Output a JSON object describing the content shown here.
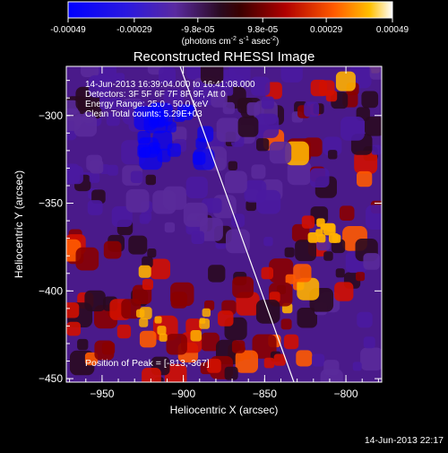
{
  "colorbar": {
    "ticks": [
      "-0.00049",
      "-0.00029",
      "-9.8e-05",
      "9.8e-05",
      "0.00029",
      "0.00049"
    ],
    "tick_values": [
      -0.00049,
      -0.00029,
      -9.8e-05,
      9.8e-05,
      0.00029,
      0.00049
    ],
    "range": [
      -0.00049,
      0.00049
    ],
    "unit_main": "(photons cm",
    "unit_exp1": "-2",
    "unit_s": " s",
    "unit_exp2": "-1",
    "unit_asec": " asec",
    "unit_exp3": "-2",
    "unit_close": ")"
  },
  "chart_data": {
    "type": "heatmap",
    "title": "Reconstructed RHESSI Image",
    "xlabel": "Heliocentric X (arcsec)",
    "ylabel": "Heliocentric Y (arcsec)",
    "xlim": [
      -972,
      -778
    ],
    "ylim": [
      -452,
      -272
    ],
    "x_ticks": [
      -950,
      -900,
      -850,
      -800
    ],
    "y_ticks": [
      -300,
      -350,
      -400,
      -450
    ],
    "x_tick_labels": [
      "−950",
      "−900",
      "−850",
      "−800"
    ],
    "y_tick_labels": [
      "−300",
      "−350",
      "−400",
      "−450"
    ],
    "limb_line": [
      [
        -902,
        -272
      ],
      [
        -832,
        -452
      ]
    ],
    "peak": [
      -813,
      -367
    ],
    "colormap": [
      "#0000ff",
      "#4a1aa0",
      "#5a2a9a",
      "#2a0a20",
      "#8a0000",
      "#d21000",
      "#ff5a00",
      "#ffb000",
      "#ffffff"
    ],
    "annotations": [
      "14-Jun-2013 16:39:04.000 to 16:41:08.000",
      "Detectors: 3F 5F 6F 7F 8F 9F, Att 0",
      "Energy Range: 25.0 - 50.0 keV",
      "Clean     Total counts: 5.29E+03"
    ],
    "peak_label": "Position of Peak = [-813,-367]"
  },
  "footer": {
    "timestamp": "14-Jun-2013 22:17"
  }
}
